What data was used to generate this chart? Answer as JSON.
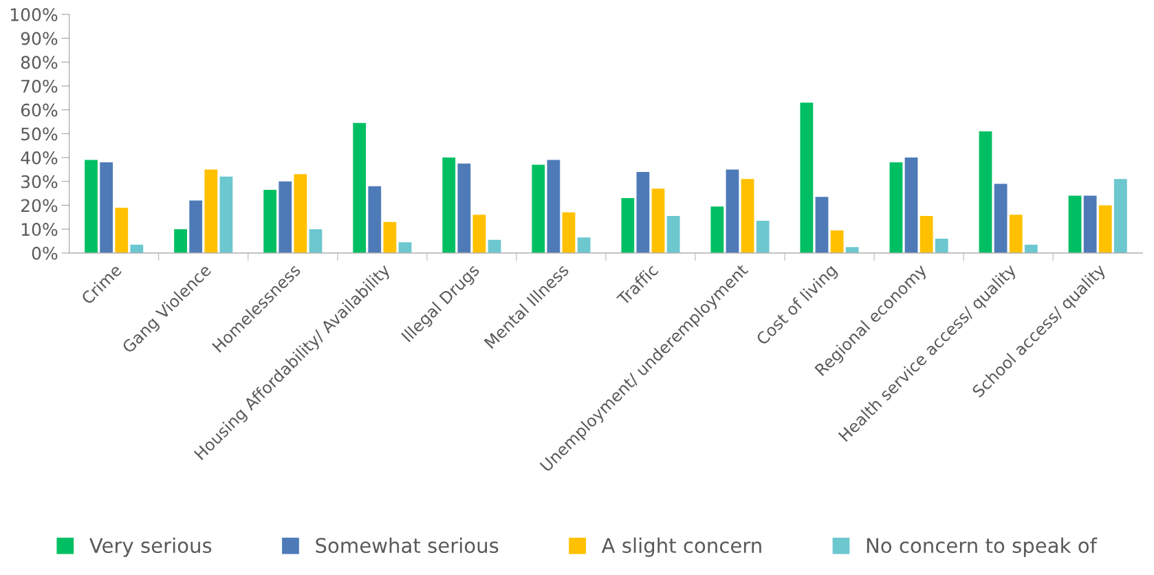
{
  "chart_data": {
    "type": "bar",
    "categories": [
      "Crime",
      "Gang Violence",
      "Homelessness",
      "Housing Affordability/ Availability",
      "Illegal Drugs",
      "Mental Illness",
      "Traffic",
      "Unemployment/ underemployment",
      "Cost of living",
      "Regional economy",
      "Health service access/ quality",
      "School access/ quality"
    ],
    "series": [
      {
        "name": "Very serious",
        "color": "#00bf63",
        "values": [
          39,
          10,
          26.5,
          54.5,
          40,
          37,
          23,
          19.5,
          63,
          38,
          51,
          24
        ]
      },
      {
        "name": "Somewhat serious",
        "color": "#4e7bb8",
        "values": [
          38,
          22,
          30,
          28,
          37.5,
          39,
          34,
          35,
          23.5,
          40,
          29,
          24
        ]
      },
      {
        "name": "A slight concern",
        "color": "#ffc000",
        "values": [
          19,
          35,
          33,
          13,
          16,
          17,
          27,
          31,
          9.5,
          15.5,
          16,
          20
        ]
      },
      {
        "name": "No concern to speak of",
        "color": "#6cc7cf",
        "values": [
          3.5,
          32,
          10,
          4.5,
          5.5,
          6.5,
          15.5,
          13.5,
          2.5,
          6,
          3.5,
          31
        ]
      }
    ],
    "ylim": [
      0,
      100
    ],
    "yticks": [
      {
        "value": 0,
        "label": "0%"
      },
      {
        "value": 10,
        "label": "10%"
      },
      {
        "value": 20,
        "label": "20%"
      },
      {
        "value": 30,
        "label": "30%"
      },
      {
        "value": 40,
        "label": "40%"
      },
      {
        "value": 50,
        "label": "50%"
      },
      {
        "value": 60,
        "label": "60%"
      },
      {
        "value": 70,
        "label": "70%"
      },
      {
        "value": 80,
        "label": "80%"
      },
      {
        "value": 90,
        "label": "90%"
      },
      {
        "value": 100,
        "label": "100%"
      }
    ],
    "grid": false,
    "legend": "bottom"
  }
}
